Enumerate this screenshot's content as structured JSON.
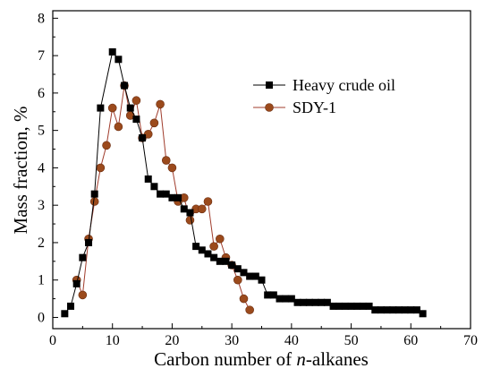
{
  "chart_data": {
    "type": "line",
    "title": "",
    "xlabel_prefix": "Carbon number of ",
    "xlabel_italic": "n",
    "xlabel_suffix": "-alkanes",
    "ylabel": "Mass fraction, %",
    "xlim": [
      0,
      70
    ],
    "ylim": [
      -0.3,
      8.2
    ],
    "xticks": [
      0,
      10,
      20,
      30,
      40,
      50,
      60,
      70
    ],
    "yticks": [
      0,
      1,
      2,
      3,
      4,
      5,
      6,
      7,
      8
    ],
    "grid": false,
    "legend_position": "top-right",
    "series": [
      {
        "name": "Heavy crude oil",
        "color": "#000000",
        "marker": "square",
        "x": [
          2,
          3,
          4,
          5,
          6,
          7,
          8,
          10,
          11,
          12,
          13,
          14,
          15,
          16,
          17,
          18,
          19,
          20,
          21,
          22,
          23,
          24,
          25,
          26,
          27,
          28,
          29,
          30,
          31,
          32,
          33,
          34,
          35,
          36,
          37,
          38,
          39,
          40,
          41,
          42,
          43,
          44,
          45,
          46,
          47,
          48,
          49,
          50,
          51,
          52,
          53,
          54,
          55,
          56,
          57,
          58,
          59,
          60,
          61,
          62
        ],
        "y": [
          0.1,
          0.3,
          0.9,
          1.6,
          2.0,
          3.3,
          5.6,
          7.1,
          6.9,
          6.2,
          5.6,
          5.3,
          4.8,
          3.7,
          3.5,
          3.3,
          3.3,
          3.2,
          3.2,
          2.9,
          2.8,
          1.9,
          1.8,
          1.7,
          1.6,
          1.5,
          1.5,
          1.4,
          1.3,
          1.2,
          1.1,
          1.1,
          1.0,
          0.6,
          0.6,
          0.5,
          0.5,
          0.5,
          0.4,
          0.4,
          0.4,
          0.4,
          0.4,
          0.4,
          0.3,
          0.3,
          0.3,
          0.3,
          0.3,
          0.3,
          0.3,
          0.2,
          0.2,
          0.2,
          0.2,
          0.2,
          0.2,
          0.2,
          0.2,
          0.1
        ]
      },
      {
        "name": "SDY-1",
        "color": "#7a3a1a",
        "marker_fill": "#9b4a1c",
        "line_color": "#a03c2c",
        "marker": "circle",
        "x": [
          4,
          5,
          6,
          7,
          8,
          9,
          10,
          11,
          12,
          13,
          14,
          15,
          16,
          17,
          18,
          19,
          20,
          21,
          22,
          23,
          24,
          25,
          26,
          27,
          28,
          29,
          30,
          31,
          32,
          33
        ],
        "y": [
          1.0,
          0.6,
          2.1,
          3.1,
          4.0,
          4.6,
          5.6,
          5.1,
          6.2,
          5.4,
          5.8,
          4.8,
          4.9,
          5.2,
          5.7,
          4.2,
          4.0,
          3.1,
          3.2,
          2.6,
          2.9,
          2.9,
          3.1,
          1.9,
          2.1,
          1.6,
          1.4,
          1.0,
          0.5,
          0.2
        ]
      }
    ]
  }
}
